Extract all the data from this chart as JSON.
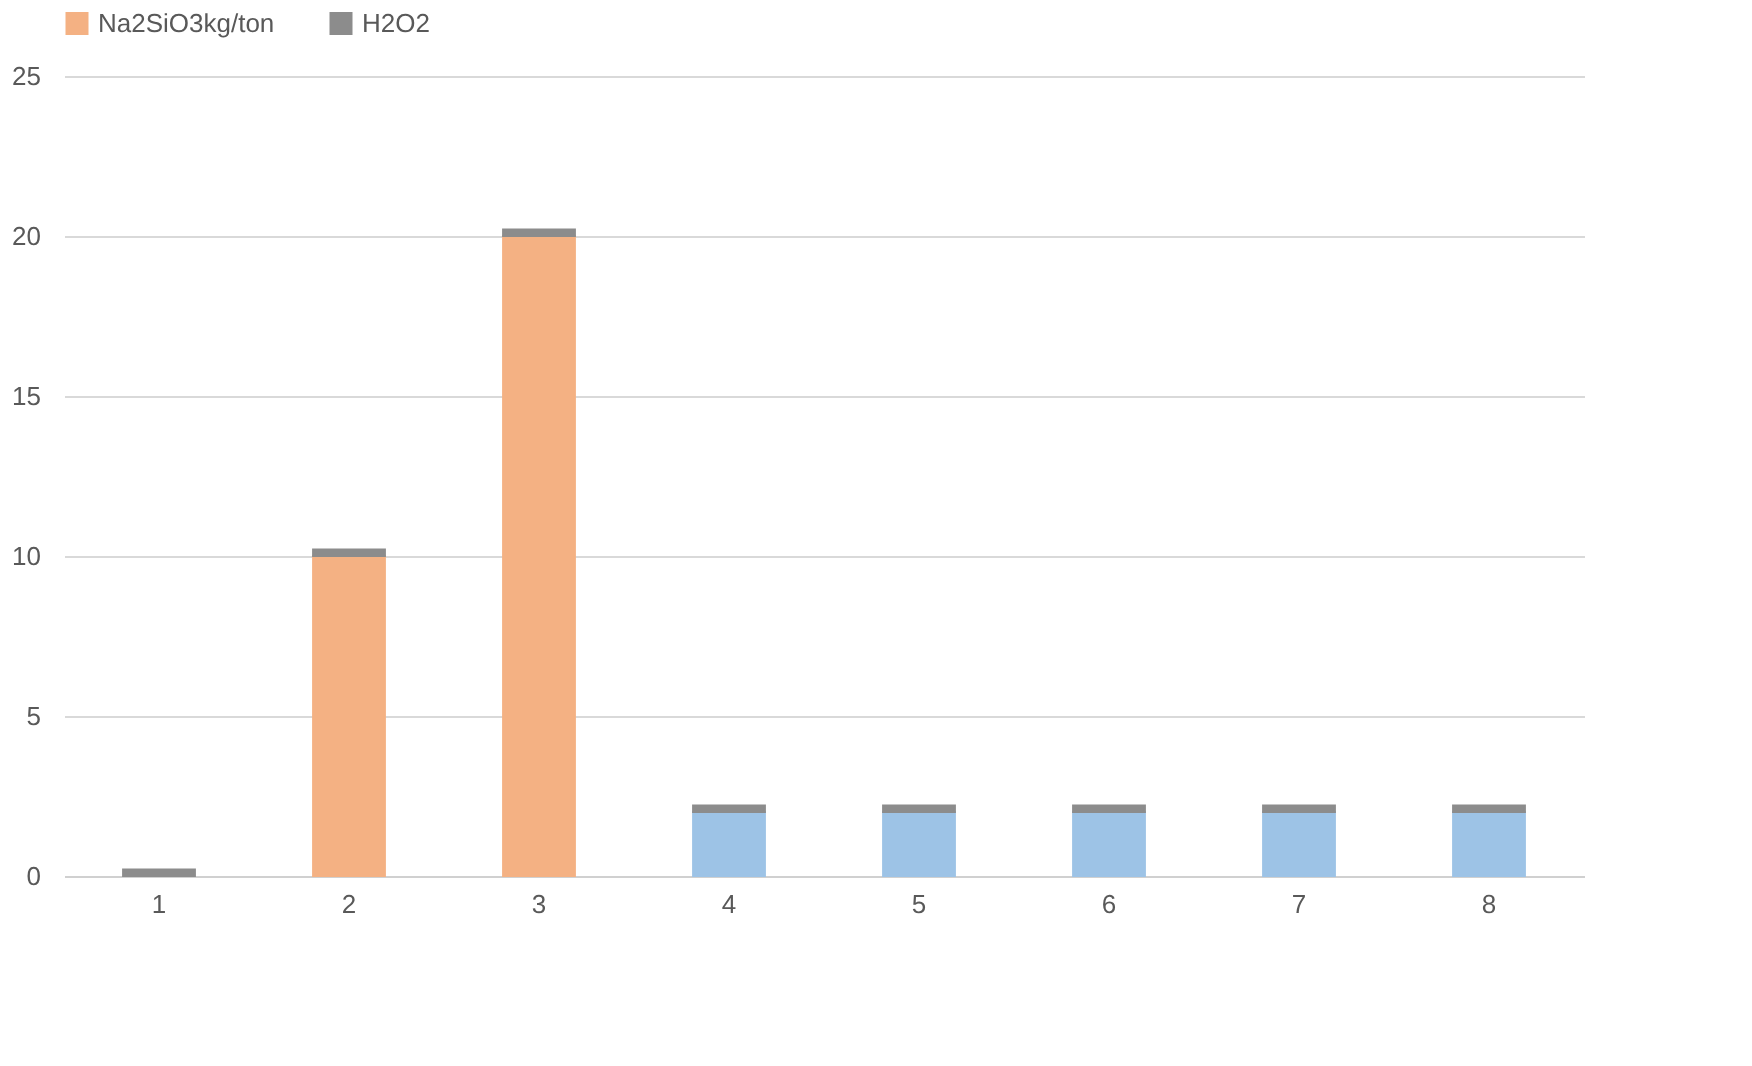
{
  "chart_data": {
    "type": "bar",
    "stacked": true,
    "categories": [
      "1",
      "2",
      "3",
      "4",
      "5",
      "6",
      "7",
      "8"
    ],
    "series": [
      {
        "color": "#9dc3e6",
        "values": [
          0,
          0,
          0,
          2,
          2,
          2,
          2,
          2
        ]
      },
      {
        "name": "Na2SiO3kg/ton",
        "color": "#f4b183",
        "values": [
          0,
          10,
          20,
          0,
          0,
          0,
          0,
          0
        ]
      },
      {
        "name": "H2O2",
        "color": "#8c8c8c",
        "values": [
          0.2,
          0.2,
          0.2,
          0.2,
          0.2,
          0.2,
          0.2,
          0.2
        ]
      }
    ],
    "ylim": [
      0,
      25
    ],
    "yticks": [
      0,
      5,
      10,
      15,
      20,
      25
    ],
    "grid": "y",
    "legend": "top"
  }
}
